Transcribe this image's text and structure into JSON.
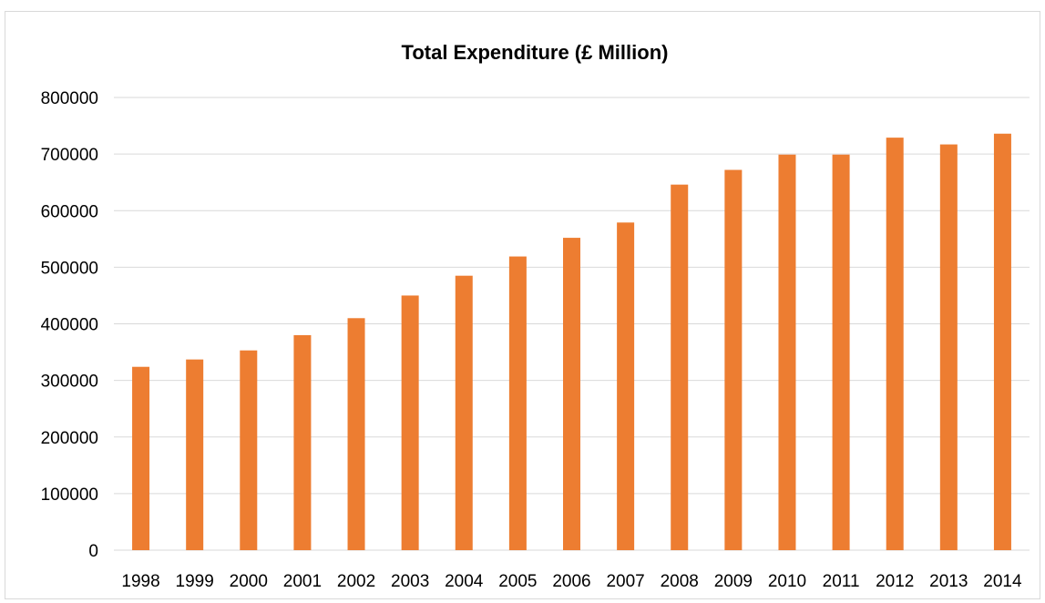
{
  "chart_data": {
    "type": "bar",
    "title": "Total Expenditure (£ Million)",
    "xlabel": "",
    "ylabel": "",
    "categories": [
      "1998",
      "1999",
      "2000",
      "2001",
      "2002",
      "2003",
      "2004",
      "2005",
      "2006",
      "2007",
      "2008",
      "2009",
      "2010",
      "2011",
      "2012",
      "2013",
      "2014"
    ],
    "values": [
      324000,
      337000,
      353000,
      380000,
      410000,
      450000,
      485000,
      519000,
      552000,
      579000,
      646000,
      672000,
      699000,
      699000,
      729000,
      717000,
      736000
    ],
    "ylim": [
      0,
      800000
    ],
    "yticks": [
      "0",
      "100000",
      "200000",
      "300000",
      "400000",
      "500000",
      "600000",
      "700000",
      "800000"
    ],
    "grid": true,
    "legend": "none",
    "bar_color": "#ED7D31",
    "grid_color": "#d9d9d9"
  }
}
